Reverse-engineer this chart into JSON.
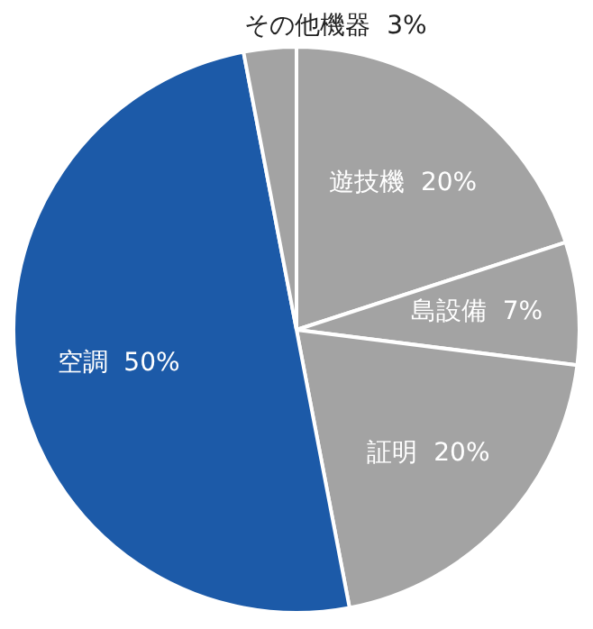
{
  "chart_data": {
    "type": "pie",
    "categories": [
      "遊技機",
      "島設備",
      "証明",
      "空調",
      "その他機器"
    ],
    "values": [
      20,
      7,
      20,
      50,
      3
    ],
    "value_labels": [
      "20%",
      "7%",
      "20%",
      "50%",
      "3%"
    ],
    "colors": [
      "#a3a3a3",
      "#a3a3a3",
      "#a3a3a3",
      "#1c5aa8",
      "#a3a3a3"
    ],
    "legend": false
  }
}
